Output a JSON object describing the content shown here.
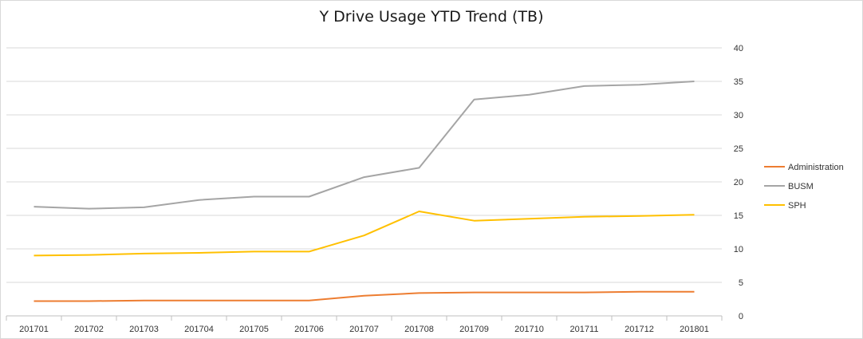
{
  "chart_data": {
    "type": "line",
    "title": "Y Drive Usage YTD Trend (TB)",
    "categories": [
      "201701",
      "201702",
      "201703",
      "201704",
      "201705",
      "201706",
      "201707",
      "201708",
      "201709",
      "201710",
      "201711",
      "201712",
      "201801"
    ],
    "y_ticks": [
      "0",
      "5",
      "10",
      "15",
      "20",
      "25",
      "30",
      "35",
      "40"
    ],
    "ylim": [
      0,
      40
    ],
    "y_axis_side": "right",
    "grid": true,
    "legend_position": "right",
    "series": [
      {
        "name": "Administration",
        "color": "#ed7d31",
        "values": [
          2.2,
          2.2,
          2.3,
          2.3,
          2.3,
          2.3,
          3.0,
          3.4,
          3.5,
          3.5,
          3.5,
          3.6,
          3.6
        ]
      },
      {
        "name": "BUSM",
        "color": "#a5a5a5",
        "values": [
          16.3,
          16.0,
          16.2,
          17.3,
          17.8,
          17.8,
          20.7,
          22.1,
          32.3,
          33.0,
          34.3,
          34.5,
          35.0
        ]
      },
      {
        "name": "SPH",
        "color": "#ffc000",
        "values": [
          9.0,
          9.1,
          9.3,
          9.4,
          9.6,
          9.6,
          12.0,
          15.6,
          14.2,
          14.5,
          14.8,
          14.9,
          15.1
        ]
      }
    ]
  }
}
